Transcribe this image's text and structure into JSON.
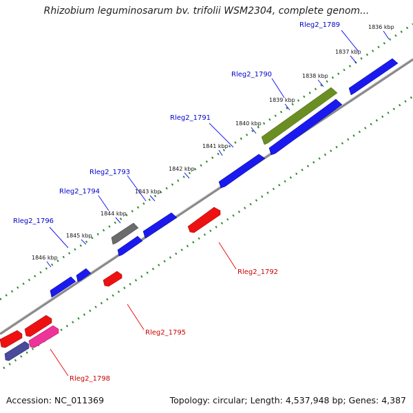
{
  "title": "Rhizobium leguminosarum bv. trifolii WSM2304, complete genom...",
  "footer": {
    "accession": "Accession: NC_011369",
    "stats": "Topology: circular; Length: 4,537,948 bp; Genes: 4,387"
  },
  "kbp_labels": [
    "1836 kbp",
    "1837 kbp",
    "1838 kbp",
    "1839 kbp",
    "1840 kbp",
    "1841 kbp",
    "1842 kbp",
    "1843 kbp",
    "1844 kbp",
    "1845 kbp",
    "1846 kbp"
  ],
  "gene_labels": [
    "Rleg2_1789",
    "Rleg2_1790",
    "Rleg2_1791",
    "Rleg2_1793",
    "Rleg2_1794",
    "Rleg2_1796",
    "Rleg2_1792",
    "Rleg2_1795",
    "Rleg2_1798"
  ],
  "colors": {
    "forward_gene": "#1a1aee",
    "reverse_gene": "#ee1111",
    "highlight_gene": "#6b8e23",
    "gray_gene": "#707070",
    "pink_gene": "#ee3399",
    "navy_gene": "#4a4a9a",
    "forward_label": "#0000cc",
    "reverse_label": "#cc0000",
    "backbone": "#909090",
    "tick_dots": "#2e8b2e"
  }
}
